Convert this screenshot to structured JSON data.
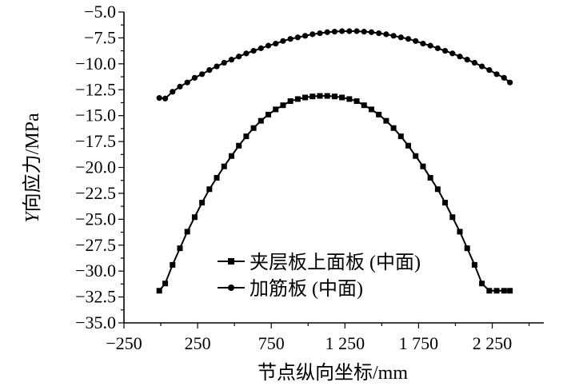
{
  "chart_data": {
    "type": "line",
    "xlabel": "节点纵向坐标/mm",
    "ylabel_italic": "Y",
    "ylabel_rest": "向应力/MPa",
    "xlim": [
      -250,
      2600
    ],
    "ylim": [
      -35.0,
      -5.0
    ],
    "x_ticks": [
      {
        "value": -250,
        "label": "−250"
      },
      {
        "value": 250,
        "label": "250"
      },
      {
        "value": 750,
        "label": "750"
      },
      {
        "value": 1250,
        "label": "1 250"
      },
      {
        "value": 1750,
        "label": "1 750"
      },
      {
        "value": 2250,
        "label": "2 250"
      }
    ],
    "y_ticks": [
      {
        "value": -5.0,
        "label": "−5.0"
      },
      {
        "value": -7.5,
        "label": "−7.5"
      },
      {
        "value": -10.0,
        "label": "−10.0"
      },
      {
        "value": -12.5,
        "label": "−12.5"
      },
      {
        "value": -15.0,
        "label": "−15.0"
      },
      {
        "value": -17.5,
        "label": "−17.5"
      },
      {
        "value": -20.0,
        "label": "−20.0"
      },
      {
        "value": -22.5,
        "label": "−22.5"
      },
      {
        "value": -25.0,
        "label": "−25.0"
      },
      {
        "value": -27.5,
        "label": "−27.5"
      },
      {
        "value": -30.0,
        "label": "−30.0"
      },
      {
        "value": -32.5,
        "label": "−32.5"
      },
      {
        "value": -35.0,
        "label": "−35.0"
      }
    ],
    "legend_position": "lower-center",
    "series": [
      {
        "name": "夹层板上面板 (中面)",
        "marker": "square",
        "x": [
          -10,
          30,
          80,
          130,
          180,
          230,
          280,
          330,
          380,
          430,
          480,
          530,
          580,
          630,
          680,
          730,
          780,
          830,
          880,
          930,
          980,
          1030,
          1080,
          1130,
          1180,
          1230,
          1280,
          1330,
          1380,
          1430,
          1480,
          1530,
          1580,
          1630,
          1680,
          1730,
          1780,
          1830,
          1880,
          1930,
          1980,
          2030,
          2080,
          2130,
          2180,
          2230,
          2280,
          2330,
          2370
        ],
        "y": [
          -31.9,
          -31.2,
          -29.4,
          -27.8,
          -26.2,
          -24.8,
          -23.4,
          -22.1,
          -21.0,
          -19.9,
          -18.9,
          -17.9,
          -17.0,
          -16.2,
          -15.5,
          -14.9,
          -14.4,
          -14.0,
          -13.6,
          -13.4,
          -13.25,
          -13.15,
          -13.1,
          -13.1,
          -13.15,
          -13.25,
          -13.4,
          -13.6,
          -14.0,
          -14.4,
          -14.9,
          -15.5,
          -16.2,
          -17.0,
          -17.9,
          -18.9,
          -19.9,
          -21.0,
          -22.1,
          -23.4,
          -24.8,
          -26.2,
          -27.8,
          -29.4,
          -31.2,
          -31.9,
          -31.9,
          -31.9,
          -31.9
        ]
      },
      {
        "name": "加筋板 (中面)",
        "marker": "circle",
        "x": [
          -10,
          30,
          80,
          130,
          180,
          230,
          280,
          330,
          380,
          430,
          480,
          530,
          580,
          630,
          680,
          730,
          780,
          830,
          880,
          930,
          980,
          1030,
          1080,
          1130,
          1180,
          1230,
          1280,
          1330,
          1380,
          1430,
          1480,
          1530,
          1580,
          1630,
          1680,
          1730,
          1780,
          1830,
          1880,
          1930,
          1980,
          2030,
          2080,
          2130,
          2180,
          2230,
          2280,
          2330,
          2370
        ],
        "y": [
          -13.3,
          -13.35,
          -12.7,
          -12.2,
          -11.8,
          -11.35,
          -11.0,
          -10.6,
          -10.25,
          -9.9,
          -9.6,
          -9.3,
          -9.0,
          -8.75,
          -8.5,
          -8.25,
          -8.05,
          -7.8,
          -7.6,
          -7.45,
          -7.3,
          -7.15,
          -7.05,
          -6.95,
          -6.9,
          -6.85,
          -6.85,
          -6.85,
          -6.9,
          -6.95,
          -7.05,
          -7.15,
          -7.3,
          -7.45,
          -7.6,
          -7.8,
          -8.05,
          -8.25,
          -8.5,
          -8.75,
          -9.0,
          -9.3,
          -9.6,
          -9.9,
          -10.25,
          -10.6,
          -11.0,
          -11.35,
          -11.8
        ]
      }
    ]
  }
}
